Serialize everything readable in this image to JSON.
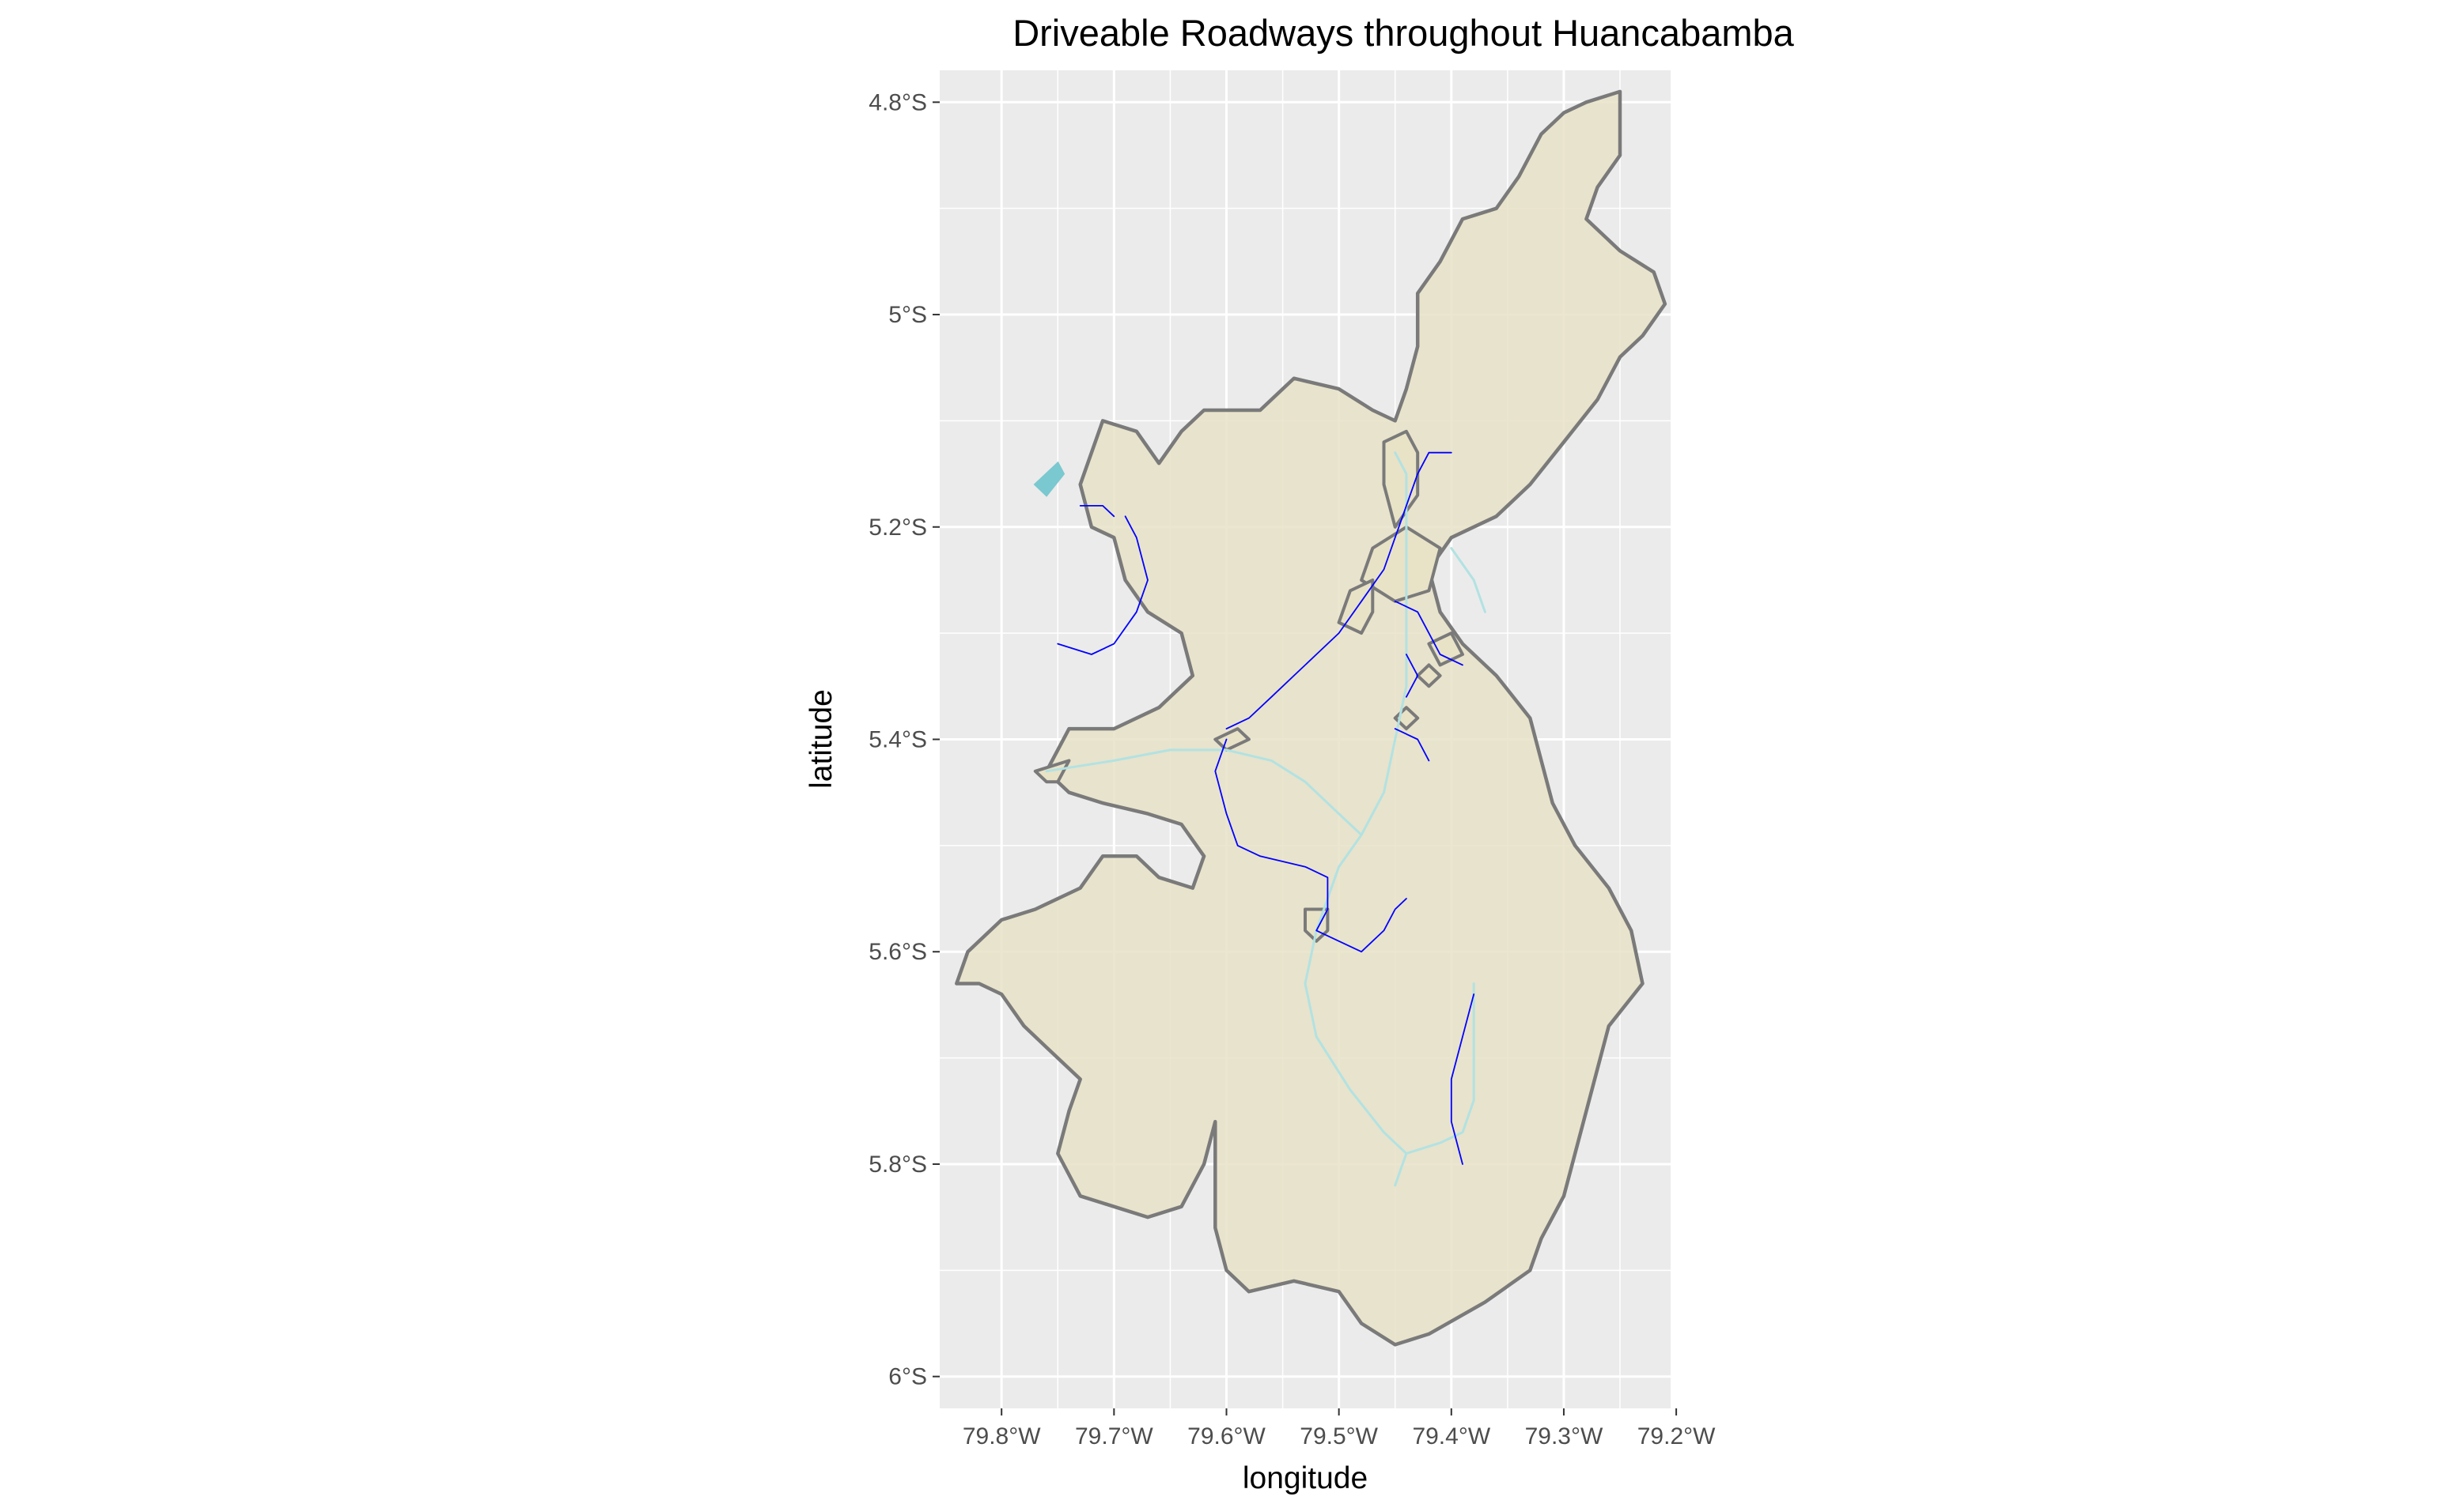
{
  "chart_data": {
    "type": "map",
    "title": "Driveable Roadways throughout Huancabamba",
    "xlabel": "longitude",
    "ylabel": "latitude",
    "xlim": [
      -79.855,
      -79.205
    ],
    "ylim": [
      -6.03,
      -4.77
    ],
    "x_ticks": [
      {
        "value": -79.8,
        "label": "79.8°W"
      },
      {
        "value": -79.7,
        "label": "79.7°W"
      },
      {
        "value": -79.6,
        "label": "79.6°W"
      },
      {
        "value": -79.5,
        "label": "79.5°W"
      },
      {
        "value": -79.4,
        "label": "79.4°W"
      },
      {
        "value": -79.3,
        "label": "79.3°W"
      },
      {
        "value": -79.2,
        "label": "79.2°W"
      }
    ],
    "y_ticks": [
      {
        "value": -4.8,
        "label": "4.8°S"
      },
      {
        "value": -5.0,
        "label": "5°S"
      },
      {
        "value": -5.2,
        "label": "5.2°S"
      },
      {
        "value": -5.4,
        "label": "5.4°S"
      },
      {
        "value": -5.6,
        "label": "5.6°S"
      },
      {
        "value": -5.8,
        "label": "5.8°S"
      },
      {
        "value": -6.0,
        "label": "6°S"
      }
    ],
    "grid": true,
    "colors": {
      "panel": "#ebebeb",
      "grid": "#ffffff",
      "region_fill": "#e8e2c7",
      "region_border": "#7a7a7a",
      "roads": "#0000ff",
      "rivers": "#b2e2e2",
      "lakes": "#7ac8d0"
    },
    "province_outline": [
      [
        -79.61,
        -5.76
      ],
      [
        -79.62,
        -5.8
      ],
      [
        -79.64,
        -5.84
      ],
      [
        -79.67,
        -5.85
      ],
      [
        -79.7,
        -5.84
      ],
      [
        -79.73,
        -5.83
      ],
      [
        -79.75,
        -5.79
      ],
      [
        -79.74,
        -5.75
      ],
      [
        -79.73,
        -5.72
      ],
      [
        -79.76,
        -5.69
      ],
      [
        -79.78,
        -5.67
      ],
      [
        -79.8,
        -5.64
      ],
      [
        -79.82,
        -5.63
      ],
      [
        -79.84,
        -5.63
      ],
      [
        -79.83,
        -5.6
      ],
      [
        -79.8,
        -5.57
      ],
      [
        -79.77,
        -5.56
      ],
      [
        -79.73,
        -5.54
      ],
      [
        -79.71,
        -5.51
      ],
      [
        -79.68,
        -5.51
      ],
      [
        -79.66,
        -5.53
      ],
      [
        -79.63,
        -5.54
      ],
      [
        -79.62,
        -5.51
      ],
      [
        -79.64,
        -5.48
      ],
      [
        -79.67,
        -5.47
      ],
      [
        -79.71,
        -5.46
      ],
      [
        -79.74,
        -5.45
      ],
      [
        -79.76,
        -5.43
      ],
      [
        -79.74,
        -5.39
      ],
      [
        -79.7,
        -5.39
      ],
      [
        -79.66,
        -5.37
      ],
      [
        -79.63,
        -5.34
      ],
      [
        -79.64,
        -5.3
      ],
      [
        -79.67,
        -5.28
      ],
      [
        -79.69,
        -5.25
      ],
      [
        -79.7,
        -5.21
      ],
      [
        -79.72,
        -5.2
      ],
      [
        -79.73,
        -5.16
      ],
      [
        -79.71,
        -5.1
      ],
      [
        -79.68,
        -5.11
      ],
      [
        -79.66,
        -5.14
      ],
      [
        -79.64,
        -5.11
      ],
      [
        -79.62,
        -5.09
      ],
      [
        -79.57,
        -5.09
      ],
      [
        -79.54,
        -5.06
      ],
      [
        -79.5,
        -5.07
      ],
      [
        -79.47,
        -5.09
      ],
      [
        -79.45,
        -5.1
      ],
      [
        -79.44,
        -5.07
      ],
      [
        -79.43,
        -5.03
      ],
      [
        -79.43,
        -4.98
      ],
      [
        -79.41,
        -4.95
      ],
      [
        -79.39,
        -4.91
      ],
      [
        -79.36,
        -4.9
      ],
      [
        -79.34,
        -4.87
      ],
      [
        -79.32,
        -4.83
      ],
      [
        -79.3,
        -4.81
      ],
      [
        -79.28,
        -4.8
      ],
      [
        -79.25,
        -4.79
      ],
      [
        -79.25,
        -4.82
      ],
      [
        -79.25,
        -4.85
      ],
      [
        -79.27,
        -4.88
      ],
      [
        -79.28,
        -4.91
      ],
      [
        -79.25,
        -4.94
      ],
      [
        -79.22,
        -4.96
      ],
      [
        -79.21,
        -4.99
      ],
      [
        -79.23,
        -5.02
      ],
      [
        -79.25,
        -5.04
      ],
      [
        -79.27,
        -5.08
      ],
      [
        -79.3,
        -5.12
      ],
      [
        -79.33,
        -5.16
      ],
      [
        -79.36,
        -5.19
      ],
      [
        -79.4,
        -5.21
      ],
      [
        -79.42,
        -5.24
      ],
      [
        -79.41,
        -5.28
      ],
      [
        -79.39,
        -5.31
      ],
      [
        -79.36,
        -5.34
      ],
      [
        -79.33,
        -5.38
      ],
      [
        -79.32,
        -5.42
      ],
      [
        -79.31,
        -5.46
      ],
      [
        -79.29,
        -5.5
      ],
      [
        -79.26,
        -5.54
      ],
      [
        -79.24,
        -5.58
      ],
      [
        -79.23,
        -5.63
      ],
      [
        -79.26,
        -5.67
      ],
      [
        -79.27,
        -5.71
      ],
      [
        -79.28,
        -5.75
      ],
      [
        -79.29,
        -5.79
      ],
      [
        -79.3,
        -5.83
      ],
      [
        -79.32,
        -5.87
      ],
      [
        -79.33,
        -5.9
      ],
      [
        -79.37,
        -5.93
      ],
      [
        -79.42,
        -5.96
      ],
      [
        -79.45,
        -5.97
      ],
      [
        -79.48,
        -5.95
      ],
      [
        -79.5,
        -5.92
      ],
      [
        -79.54,
        -5.91
      ],
      [
        -79.58,
        -5.92
      ],
      [
        -79.6,
        -5.9
      ],
      [
        -79.61,
        -5.86
      ],
      [
        -79.61,
        -5.81
      ]
    ],
    "districts": [
      [
        [
          -79.46,
          -5.12
        ],
        [
          -79.44,
          -5.11
        ],
        [
          -79.43,
          -5.13
        ],
        [
          -79.43,
          -5.17
        ],
        [
          -79.45,
          -5.2
        ],
        [
          -79.46,
          -5.16
        ]
      ],
      [
        [
          -79.47,
          -5.22
        ],
        [
          -79.44,
          -5.2
        ],
        [
          -79.41,
          -5.22
        ],
        [
          -79.42,
          -5.26
        ],
        [
          -79.45,
          -5.27
        ],
        [
          -79.48,
          -5.25
        ]
      ],
      [
        [
          -79.49,
          -5.26
        ],
        [
          -79.47,
          -5.25
        ],
        [
          -79.47,
          -5.28
        ],
        [
          -79.48,
          -5.3
        ],
        [
          -79.5,
          -5.29
        ]
      ],
      [
        [
          -79.42,
          -5.31
        ],
        [
          -79.4,
          -5.3
        ],
        [
          -79.39,
          -5.32
        ],
        [
          -79.41,
          -5.33
        ]
      ],
      [
        [
          -79.43,
          -5.34
        ],
        [
          -79.42,
          -5.33
        ],
        [
          -79.41,
          -5.34
        ],
        [
          -79.42,
          -5.35
        ]
      ],
      [
        [
          -79.45,
          -5.38
        ],
        [
          -79.44,
          -5.37
        ],
        [
          -79.43,
          -5.38
        ],
        [
          -79.44,
          -5.39
        ]
      ],
      [
        [
          -79.61,
          -5.4
        ],
        [
          -79.59,
          -5.39
        ],
        [
          -79.58,
          -5.4
        ],
        [
          -79.6,
          -5.41
        ]
      ],
      [
        [
          -79.53,
          -5.56
        ],
        [
          -79.51,
          -5.56
        ],
        [
          -79.51,
          -5.58
        ],
        [
          -79.52,
          -5.59
        ],
        [
          -79.53,
          -5.58
        ]
      ],
      [
        [
          -79.77,
          -5.43
        ],
        [
          -79.74,
          -5.42
        ],
        [
          -79.75,
          -5.44
        ],
        [
          -79.76,
          -5.44
        ]
      ]
    ],
    "lakes": [
      [
        [
          -79.77,
          -5.16
        ],
        [
          -79.75,
          -5.14
        ],
        [
          -79.745,
          -5.15
        ],
        [
          -79.76,
          -5.17
        ]
      ]
    ],
    "rivers": [
      [
        [
          -79.76,
          -5.43
        ],
        [
          -79.7,
          -5.42
        ],
        [
          -79.65,
          -5.41
        ],
        [
          -79.6,
          -5.41
        ],
        [
          -79.56,
          -5.42
        ],
        [
          -79.53,
          -5.44
        ],
        [
          -79.5,
          -5.47
        ],
        [
          -79.48,
          -5.49
        ],
        [
          -79.46,
          -5.45
        ],
        [
          -79.45,
          -5.4
        ],
        [
          -79.44,
          -5.35
        ],
        [
          -79.44,
          -5.3
        ],
        [
          -79.44,
          -5.25
        ],
        [
          -79.44,
          -5.2
        ],
        [
          -79.44,
          -5.15
        ],
        [
          -79.45,
          -5.13
        ]
      ],
      [
        [
          -79.48,
          -5.49
        ],
        [
          -79.5,
          -5.52
        ],
        [
          -79.51,
          -5.55
        ],
        [
          -79.52,
          -5.58
        ],
        [
          -79.53,
          -5.63
        ],
        [
          -79.52,
          -5.68
        ],
        [
          -79.49,
          -5.73
        ],
        [
          -79.46,
          -5.77
        ],
        [
          -79.44,
          -5.79
        ],
        [
          -79.45,
          -5.82
        ]
      ],
      [
        [
          -79.44,
          -5.79
        ],
        [
          -79.41,
          -5.78
        ],
        [
          -79.39,
          -5.77
        ],
        [
          -79.38,
          -5.74
        ],
        [
          -79.38,
          -5.69
        ],
        [
          -79.38,
          -5.63
        ]
      ],
      [
        [
          -79.4,
          -5.22
        ],
        [
          -79.38,
          -5.25
        ],
        [
          -79.37,
          -5.28
        ]
      ]
    ],
    "roads": [
      [
        [
          -79.73,
          -5.18
        ],
        [
          -79.71,
          -5.18
        ],
        [
          -79.7,
          -5.19
        ]
      ],
      [
        [
          -79.75,
          -5.31
        ],
        [
          -79.72,
          -5.32
        ],
        [
          -79.7,
          -5.31
        ],
        [
          -79.68,
          -5.28
        ],
        [
          -79.67,
          -5.25
        ],
        [
          -79.68,
          -5.21
        ],
        [
          -79.69,
          -5.19
        ]
      ],
      [
        [
          -79.6,
          -5.39
        ],
        [
          -79.58,
          -5.38
        ],
        [
          -79.56,
          -5.36
        ],
        [
          -79.54,
          -5.34
        ],
        [
          -79.52,
          -5.32
        ],
        [
          -79.5,
          -5.3
        ],
        [
          -79.48,
          -5.27
        ],
        [
          -79.46,
          -5.24
        ],
        [
          -79.45,
          -5.21
        ],
        [
          -79.44,
          -5.18
        ],
        [
          -79.43,
          -5.15
        ],
        [
          -79.42,
          -5.13
        ],
        [
          -79.4,
          -5.13
        ]
      ],
      [
        [
          -79.6,
          -5.4
        ],
        [
          -79.61,
          -5.43
        ],
        [
          -79.6,
          -5.47
        ],
        [
          -79.59,
          -5.5
        ],
        [
          -79.57,
          -5.51
        ],
        [
          -79.53,
          -5.52
        ],
        [
          -79.51,
          -5.53
        ],
        [
          -79.51,
          -5.56
        ],
        [
          -79.52,
          -5.58
        ],
        [
          -79.5,
          -5.59
        ],
        [
          -79.48,
          -5.6
        ],
        [
          -79.46,
          -5.58
        ],
        [
          -79.45,
          -5.56
        ],
        [
          -79.44,
          -5.55
        ]
      ],
      [
        [
          -79.45,
          -5.27
        ],
        [
          -79.43,
          -5.28
        ],
        [
          -79.42,
          -5.3
        ],
        [
          -79.41,
          -5.32
        ],
        [
          -79.39,
          -5.33
        ]
      ],
      [
        [
          -79.44,
          -5.32
        ],
        [
          -79.43,
          -5.34
        ],
        [
          -79.44,
          -5.36
        ]
      ],
      [
        [
          -79.45,
          -5.39
        ],
        [
          -79.43,
          -5.4
        ],
        [
          -79.42,
          -5.42
        ]
      ],
      [
        [
          -79.38,
          -5.64
        ],
        [
          -79.39,
          -5.68
        ],
        [
          -79.4,
          -5.72
        ],
        [
          -79.4,
          -5.76
        ],
        [
          -79.39,
          -5.8
        ]
      ]
    ]
  }
}
